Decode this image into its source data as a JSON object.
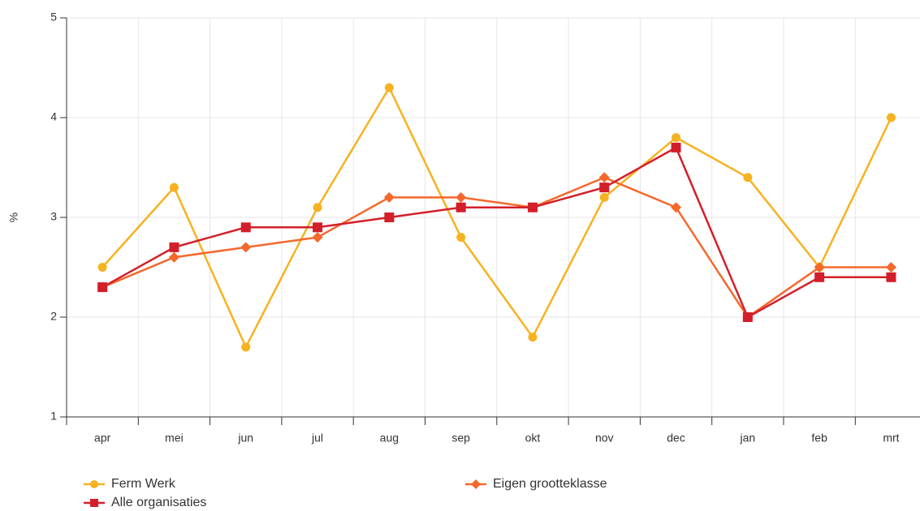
{
  "chart_data": {
    "type": "line",
    "y_label": "%",
    "categories": [
      "apr",
      "mei",
      "jun",
      "jul",
      "aug",
      "sep",
      "okt",
      "nov",
      "dec",
      "jan",
      "feb",
      "mrt"
    ],
    "series": [
      {
        "name": "Ferm Werk",
        "color": "#f6b220",
        "marker": "circle",
        "values": [
          2.5,
          3.3,
          1.7,
          3.1,
          4.3,
          2.8,
          1.8,
          3.2,
          3.8,
          3.4,
          2.5,
          4.0
        ]
      },
      {
        "name": "Eigen grootteklasse",
        "color": "#f4682c",
        "marker": "diamond",
        "values": [
          2.3,
          2.6,
          2.7,
          2.8,
          3.2,
          3.2,
          3.1,
          3.4,
          3.1,
          2.0,
          2.5,
          2.5
        ]
      },
      {
        "name": "Alle organisaties",
        "color": "#d31f2a",
        "marker": "square",
        "values": [
          2.3,
          2.7,
          2.9,
          2.9,
          3.0,
          3.1,
          3.1,
          3.3,
          3.7,
          2.0,
          2.4,
          2.4
        ]
      }
    ],
    "ylim": [
      1,
      5
    ],
    "yticks": [
      1,
      2,
      3,
      4,
      5
    ],
    "grid": true
  }
}
